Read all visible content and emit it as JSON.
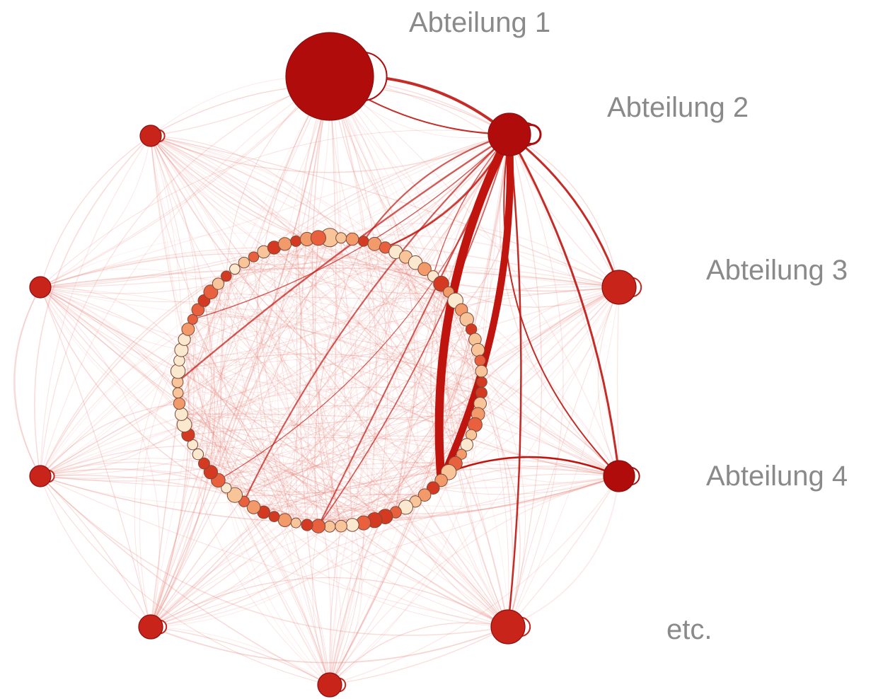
{
  "labels": {
    "dept1": "Abteilung 1",
    "dept2": "Abteilung 2",
    "dept3": "Abteilung 3",
    "dept4": "Abteilung 4",
    "etc": "etc."
  },
  "colors": {
    "outer_node": "#c8241a",
    "outer_node_dark": "#b00c0c",
    "edge_faint": "#e8837a",
    "edge_strong": "#c0150f",
    "inner_palette": [
      "#fbe9cf",
      "#f8c49a",
      "#f29a6a",
      "#e8603e",
      "#d43a22"
    ]
  },
  "network": {
    "outer_node_count": 11,
    "inner_node_count": 84
  }
}
